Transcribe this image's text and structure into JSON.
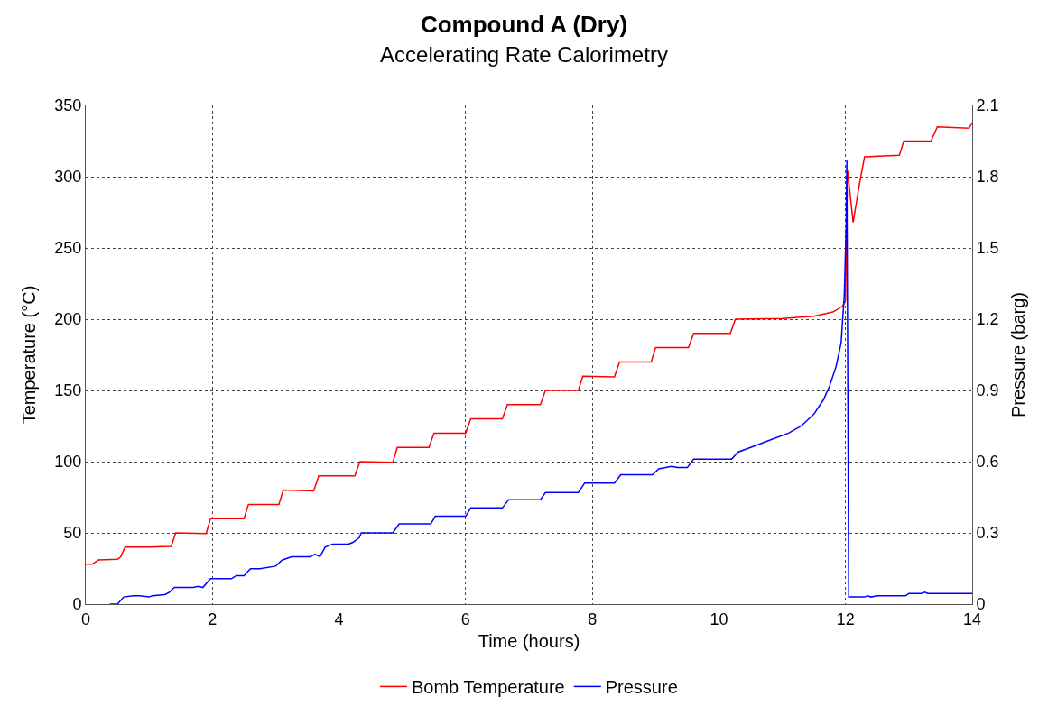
{
  "chart_data": {
    "type": "line",
    "title": "Compound A (Dry)",
    "subtitle": "Accelerating Rate Calorimetry",
    "xlabel": "Time (hours)",
    "ylabel": "Temperature (°C)",
    "y2label": "Pressure (barg)",
    "xlim": [
      0,
      14
    ],
    "xticks": [
      0,
      2,
      4,
      6,
      8,
      10,
      12,
      14
    ],
    "ylim": [
      0,
      350
    ],
    "yticks": [
      0,
      50,
      100,
      150,
      200,
      250,
      300,
      350
    ],
    "y2lim": [
      0,
      2.1
    ],
    "y2ticks": [
      0,
      0.3,
      0.6,
      0.9,
      1.2,
      1.5,
      1.8,
      2.1
    ],
    "grid": true,
    "legend": "bottom",
    "marker": "none",
    "line_style": "solid",
    "series": [
      {
        "name": "Bomb Temperature",
        "color": "#ff0000",
        "x": [
          0,
          0.1,
          0.2,
          0.5,
          0.55,
          0.62,
          1.0,
          1.35,
          1.42,
          1.9,
          1.97,
          2.5,
          2.57,
          3.05,
          3.12,
          3.6,
          3.68,
          4.25,
          4.33,
          4.85,
          4.92,
          5.42,
          5.5,
          6.0,
          6.08,
          6.58,
          6.66,
          7.18,
          7.26,
          7.78,
          7.85,
          8.35,
          8.43,
          8.93,
          9.0,
          9.52,
          9.6,
          10.18,
          10.26,
          11.0,
          11.5,
          11.8,
          11.95,
          12.0,
          12.03,
          12.12,
          12.22,
          12.3,
          12.85,
          12.92,
          13.35,
          13.45,
          13.95,
          14.0
        ],
        "values": [
          28,
          28,
          31,
          31.5,
          33,
          40,
          40,
          40.5,
          50,
          49.5,
          60,
          60,
          70,
          70,
          80,
          79.5,
          90,
          90,
          100,
          99.5,
          110,
          110,
          120,
          120,
          130,
          130,
          140,
          140,
          150,
          150,
          160,
          159.5,
          170,
          170,
          180,
          180,
          190,
          190,
          200,
          200.5,
          202,
          205,
          209,
          213,
          305,
          268,
          295,
          314,
          315,
          325,
          325,
          335,
          334,
          338
        ]
      },
      {
        "name": "Pressure",
        "color": "#0000ff",
        "axis": "y2",
        "x": [
          0.38,
          0.5,
          0.6,
          0.75,
          0.85,
          1.0,
          1.05,
          1.25,
          1.32,
          1.4,
          1.7,
          1.78,
          1.85,
          1.97,
          2.3,
          2.38,
          2.5,
          2.6,
          2.75,
          3.0,
          3.1,
          3.25,
          3.55,
          3.62,
          3.7,
          3.78,
          3.9,
          4.15,
          4.22,
          4.32,
          4.35,
          4.85,
          4.95,
          5.45,
          5.5,
          5.52,
          6.0,
          6.08,
          6.58,
          6.68,
          7.18,
          7.26,
          7.78,
          7.88,
          8.35,
          8.45,
          8.95,
          9.05,
          9.25,
          9.35,
          9.5,
          9.6,
          9.67,
          10.2,
          10.3,
          10.5,
          10.8,
          11.1,
          11.3,
          11.5,
          11.65,
          11.75,
          11.85,
          11.93,
          11.98,
          12.01,
          12.02,
          12.05,
          12.3,
          12.35,
          12.4,
          12.5,
          12.95,
          13.0,
          13.2,
          13.25,
          13.3,
          14.0
        ],
        "values": [
          0,
          0,
          0.03,
          0.035,
          0.035,
          0.03,
          0.035,
          0.04,
          0.05,
          0.07,
          0.07,
          0.075,
          0.07,
          0.107,
          0.107,
          0.12,
          0.12,
          0.149,
          0.149,
          0.16,
          0.185,
          0.199,
          0.199,
          0.21,
          0.2,
          0.24,
          0.253,
          0.253,
          0.26,
          0.28,
          0.3,
          0.3,
          0.338,
          0.338,
          0.36,
          0.37,
          0.37,
          0.405,
          0.405,
          0.44,
          0.44,
          0.47,
          0.47,
          0.51,
          0.51,
          0.545,
          0.545,
          0.57,
          0.58,
          0.575,
          0.575,
          0.61,
          0.61,
          0.61,
          0.64,
          0.66,
          0.69,
          0.72,
          0.75,
          0.8,
          0.86,
          0.92,
          1.0,
          1.1,
          1.3,
          1.6,
          1.87,
          0.03,
          0.03,
          0.035,
          0.03,
          0.035,
          0.035,
          0.045,
          0.045,
          0.05,
          0.045,
          0.045
        ]
      }
    ]
  }
}
